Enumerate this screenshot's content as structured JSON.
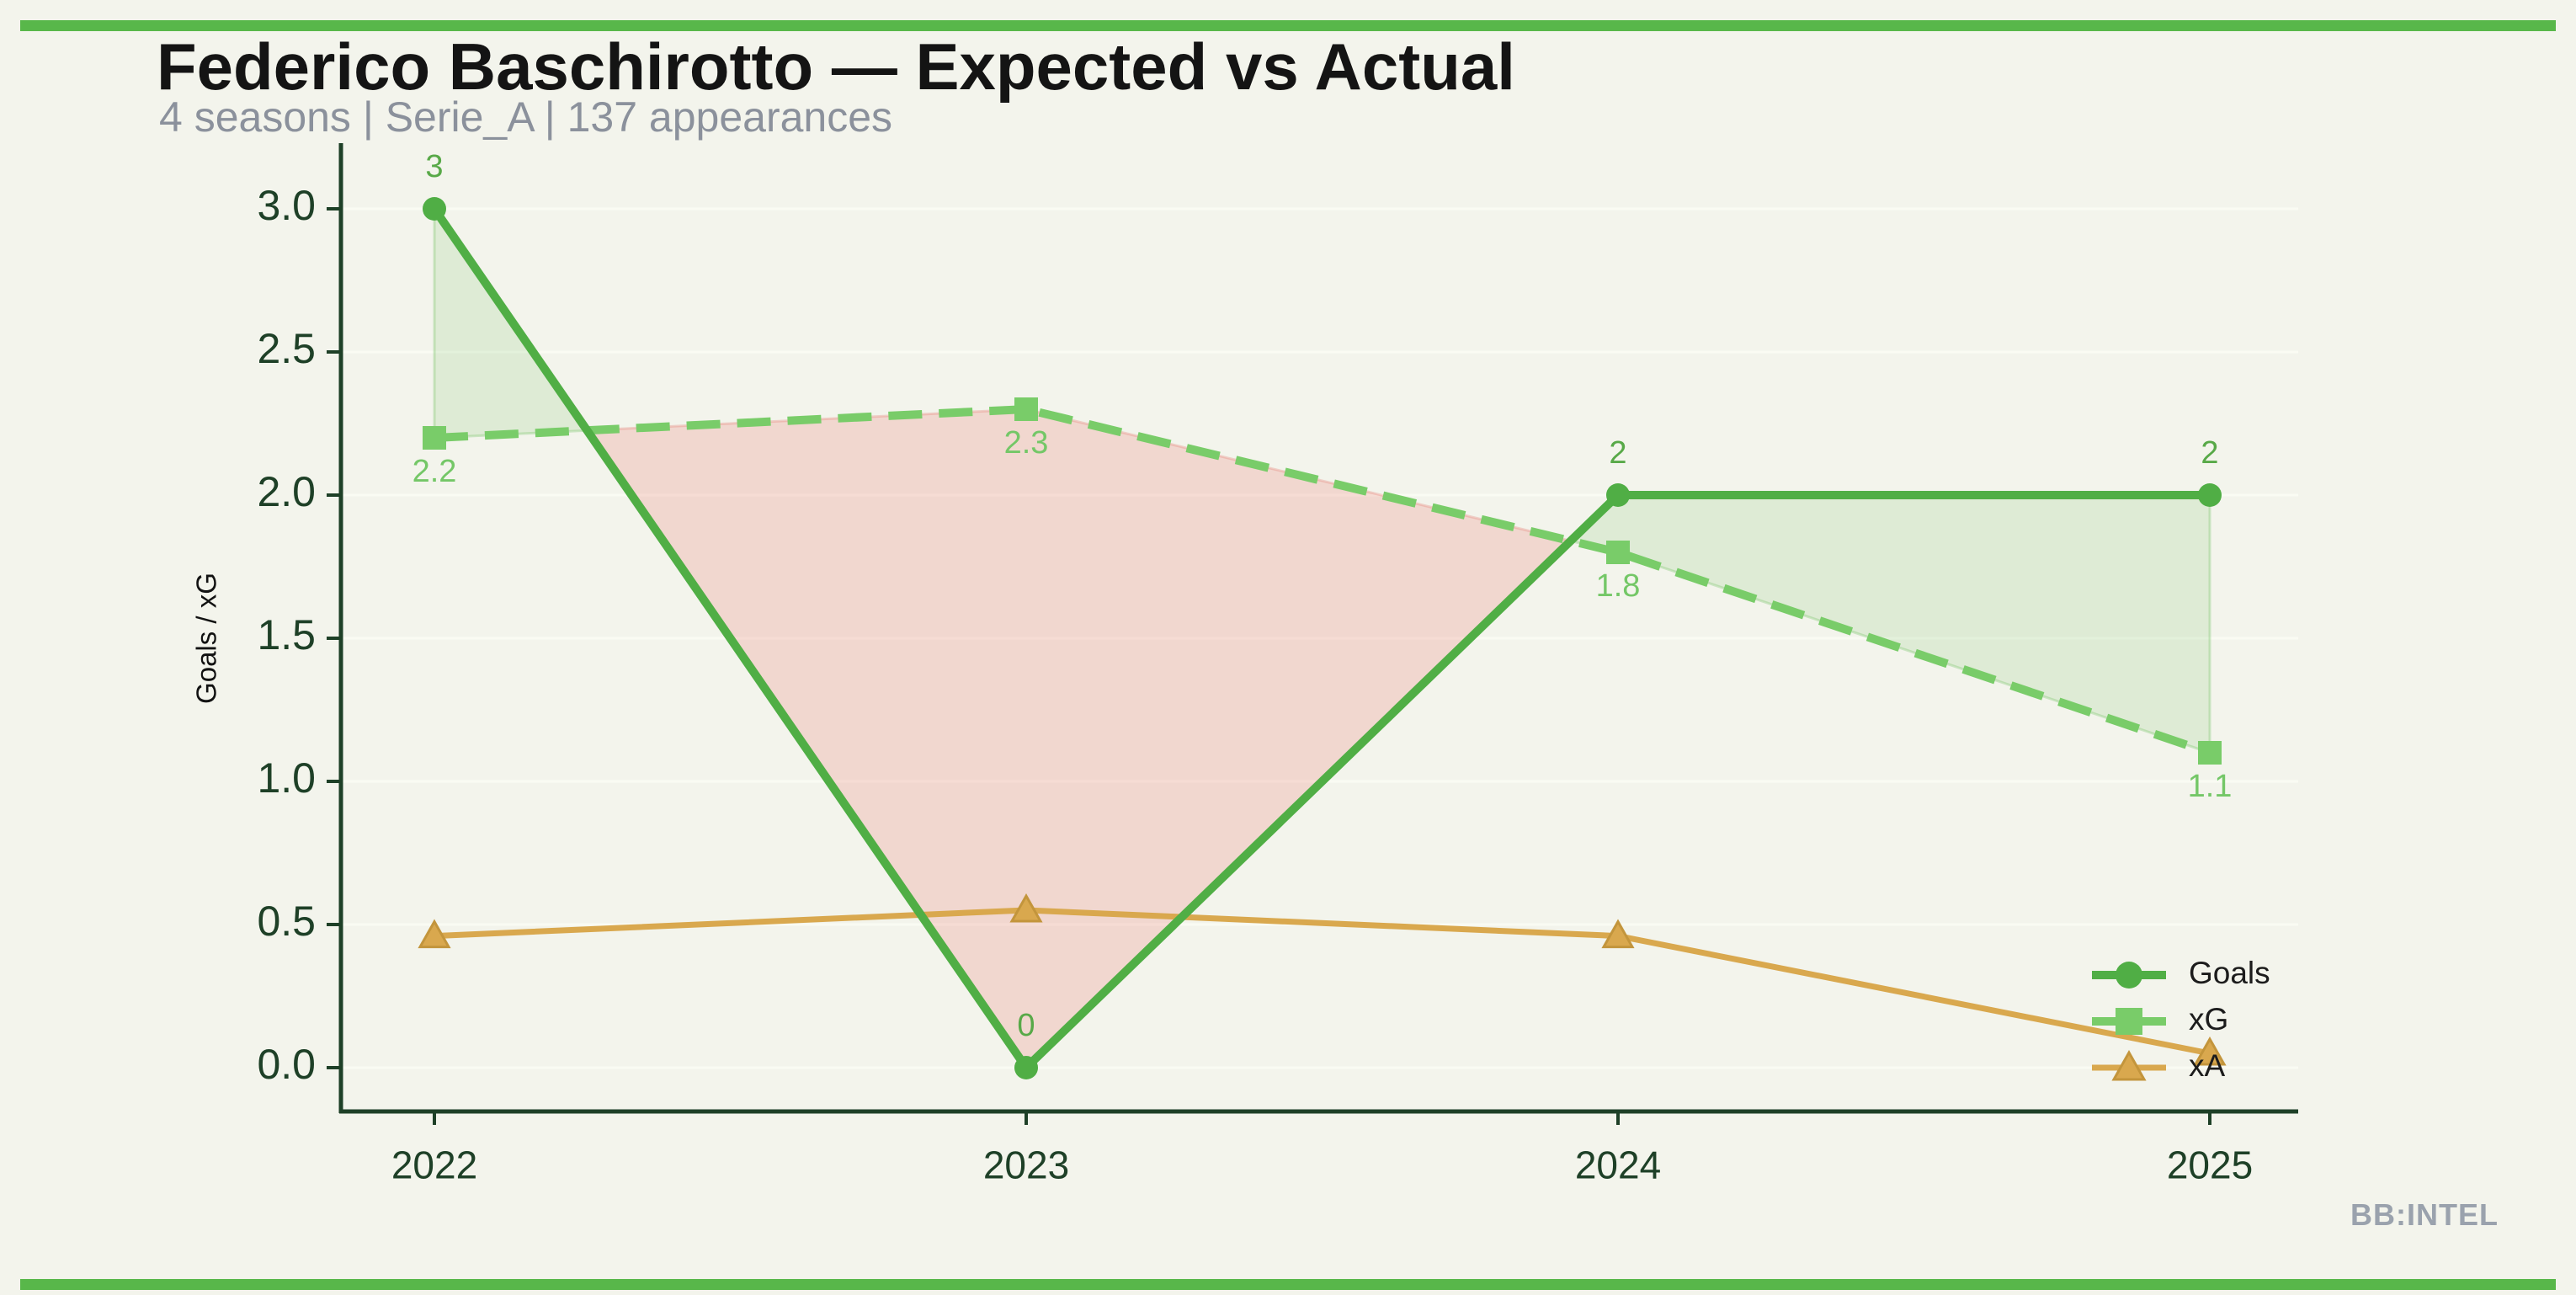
{
  "page": {
    "background": "#f3f4ec",
    "accent_bar_color": "#58b74a",
    "title": "Federico Baschirotto — Expected vs Actual",
    "subtitle": "4 seasons | Serie_A | 137 appearances",
    "watermark": "BB:INTEL"
  },
  "chart_data": {
    "type": "line",
    "title": "Federico Baschirotto — Expected vs Actual",
    "subtitle": "4 seasons | Serie_A | 137 appearances",
    "categories": [
      "2022",
      "2023",
      "2024",
      "2025"
    ],
    "ylabel": "Goals / xG",
    "xlabel": "",
    "ylim": [
      0,
      3.0
    ],
    "yticks": [
      "0.0",
      "0.5",
      "1.0",
      "1.5",
      "2.0",
      "2.5",
      "3.0"
    ],
    "grid": "horizontal-faint",
    "axis_color": "#1e4027",
    "tick_label_color": "#1e4027",
    "ylabel_color": "#121212",
    "legend": {
      "position": "lower right",
      "text_color": "#1c1c1c",
      "entries": [
        "Goals",
        "xG",
        "xA"
      ]
    },
    "series": [
      {
        "name": "Goals",
        "style": "solid",
        "marker": "circle",
        "color": "#50ae45",
        "width": 10,
        "values": [
          3,
          0,
          2,
          2
        ],
        "point_labels": [
          "3",
          "0",
          "2",
          "2"
        ],
        "label_color": "#58a948",
        "label_position": "above"
      },
      {
        "name": "xG",
        "style": "dashed",
        "marker": "square",
        "color": "#79cc69",
        "width": 10,
        "values": [
          2.2,
          2.3,
          1.8,
          1.1
        ],
        "point_labels": [
          "2.2",
          "2.3",
          "1.8",
          "1.1"
        ],
        "label_color": "#74c767",
        "label_position": "below"
      },
      {
        "name": "xA",
        "style": "solid",
        "marker": "triangle",
        "color": "#d9a84e",
        "marker_edge": "#c3953c",
        "width": 7,
        "values": [
          0.46,
          0.55,
          0.46,
          0.05
        ]
      }
    ],
    "fill_between": {
      "series_a": "Goals",
      "series_b": "xG",
      "above_color": "rgba(109,191,94,0.16)",
      "above_edge": "rgba(109,191,94,0.30)",
      "below_color": "rgba(235,130,125,0.26)",
      "below_edge": "rgba(229,120,110,0.30)"
    }
  }
}
